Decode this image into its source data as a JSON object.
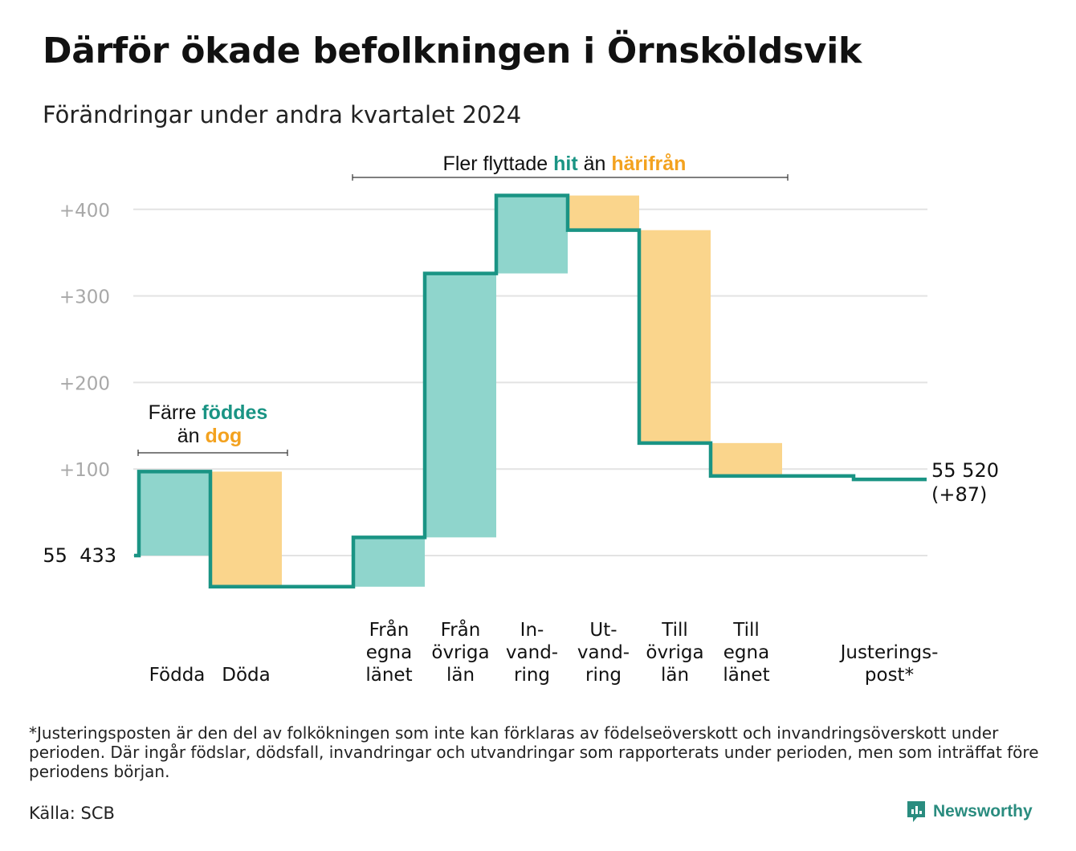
{
  "title": "Därför ökade befolkningen i Örnsköldsvik",
  "subtitle": "Förändringar under andra kvartalet 2024",
  "footnote": "*Justeringsposten är den del av folkökningen som inte kan förklaras av födelseöverskott och invandringsöverskott under perioden. Där ingår födslar, dödsfall, invandringar och utvandringar som rapporterats under perioden, men som inträffat före periodens början.",
  "source": "Källa: SCB",
  "brand": "Newsworthy",
  "chart_data": {
    "type": "waterfall",
    "start_label": "55  433",
    "end_label_line1": "55 520",
    "end_label_line2": "(+87)",
    "yticks": [
      "+400",
      "+300",
      "+200",
      "+100"
    ],
    "ytick_values": [
      400,
      300,
      200,
      100
    ],
    "ylim": [
      -65,
      420
    ],
    "grid": true,
    "steps": [
      {
        "category": "Födda",
        "label_lines": [
          "Födda"
        ],
        "value": 97,
        "type": "in"
      },
      {
        "category": "Döda",
        "label_lines": [
          "Döda"
        ],
        "value": -133,
        "type": "out"
      },
      {
        "category": "",
        "label_lines": [],
        "value": 0,
        "type": "none"
      },
      {
        "category": "Från egna länet",
        "label_lines": [
          "Från",
          "egna",
          "länet"
        ],
        "value": 57,
        "type": "in"
      },
      {
        "category": "Från övriga län",
        "label_lines": [
          "Från",
          "övriga",
          "län"
        ],
        "value": 305,
        "type": "in"
      },
      {
        "category": "Invandring",
        "label_lines": [
          "In-",
          "vand-",
          "ring"
        ],
        "value": 90,
        "type": "in"
      },
      {
        "category": "Utvandring",
        "label_lines": [
          "Ut-",
          "vand-",
          "ring"
        ],
        "value": -40,
        "type": "out"
      },
      {
        "category": "Till övriga län",
        "label_lines": [
          "Till",
          "övriga",
          "län"
        ],
        "value": -246,
        "type": "out"
      },
      {
        "category": "Till egna länet",
        "label_lines": [
          "Till",
          "egna",
          "länet"
        ],
        "value": -38,
        "type": "out"
      },
      {
        "category": "",
        "label_lines": [],
        "value": 0,
        "type": "none"
      },
      {
        "category": "Justeringspost*",
        "label_lines": [
          "Justerings-",
          "post*"
        ],
        "value": -4,
        "type": "out"
      }
    ],
    "annotation_birth": {
      "line1_plain": "Färre ",
      "line1_colored": "föddes",
      "line2_plain": "än ",
      "line2_colored": "dog"
    },
    "annotation_migration": {
      "plain1": "Fler flyttade ",
      "colored1": "hit",
      "plain2": " än ",
      "colored2": "härifrån"
    },
    "colors": {
      "in_fill": "#8fd5cc",
      "out_fill": "#fad58c",
      "line": "#1a9484",
      "in_text": "#1a9484",
      "out_text": "#f3a21f",
      "grid": "#e3e3e3",
      "tick": "#a8a8a8"
    }
  }
}
